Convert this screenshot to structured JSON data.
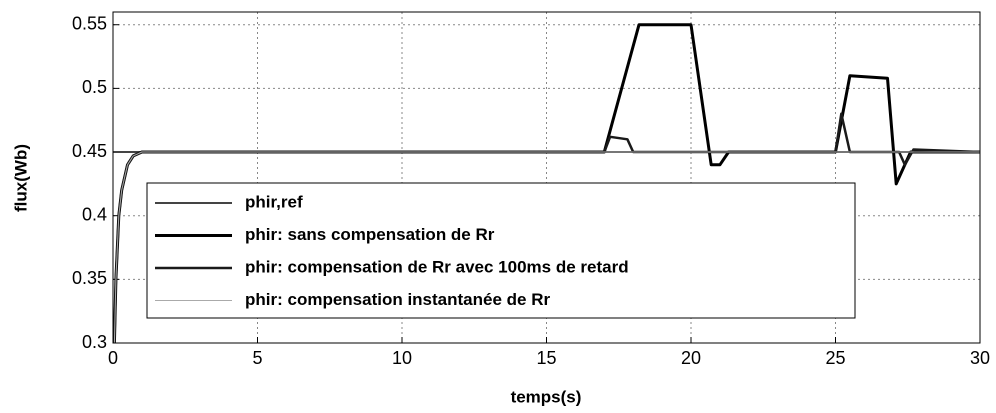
{
  "chart_data": {
    "type": "line",
    "xlabel": "temps(s)",
    "ylabel": "flux(Wb)",
    "xlim": [
      0,
      30
    ],
    "xticks": [
      0,
      5,
      10,
      15,
      20,
      25,
      30
    ],
    "ylim": [
      0.3,
      0.56
    ],
    "yticks": [
      0.3,
      0.35,
      0.4,
      0.45,
      0.5,
      0.55
    ],
    "grid": true,
    "legend": "lower left",
    "series": [
      {
        "name": "phir,ref",
        "color": "#444444",
        "x": [
          0,
          30
        ],
        "values": [
          0.45,
          0.45
        ]
      },
      {
        "name": "phir: sans compensation de Rr",
        "color": "#000000",
        "x": [
          0.05,
          0.1,
          0.2,
          0.3,
          0.5,
          0.7,
          1,
          17,
          18.2,
          20,
          20.7,
          21,
          21.3,
          25,
          25.5,
          26.8,
          27.1,
          27.6,
          30
        ],
        "values": [
          0.3,
          0.35,
          0.4,
          0.42,
          0.44,
          0.447,
          0.45,
          0.45,
          0.55,
          0.55,
          0.44,
          0.44,
          0.45,
          0.45,
          0.51,
          0.508,
          0.425,
          0.45,
          0.45
        ]
      },
      {
        "name": "phir: compensation de Rr avec 100ms de retard",
        "color": "#1a1a1a",
        "x": [
          0.05,
          0.1,
          0.2,
          0.3,
          0.5,
          0.7,
          1,
          17,
          17.2,
          17.8,
          18,
          25,
          25.2,
          25.5,
          27.2,
          27.4,
          27.7,
          30
        ],
        "values": [
          0.3,
          0.35,
          0.4,
          0.42,
          0.44,
          0.447,
          0.45,
          0.45,
          0.462,
          0.46,
          0.45,
          0.45,
          0.48,
          0.45,
          0.45,
          0.44,
          0.452,
          0.45
        ]
      },
      {
        "name": "phir: compensation instantanée de Rr",
        "color": "#aaaaaa",
        "x": [
          0.05,
          0.1,
          0.2,
          0.3,
          0.5,
          0.7,
          1,
          30
        ],
        "values": [
          0.3,
          0.35,
          0.4,
          0.42,
          0.44,
          0.447,
          0.45,
          0.45
        ]
      }
    ]
  }
}
